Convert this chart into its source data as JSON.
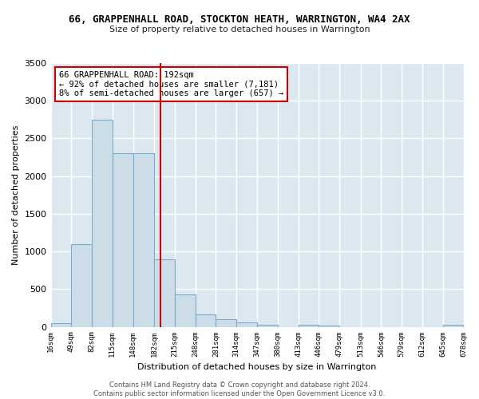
{
  "title": "66, GRAPPENHALL ROAD, STOCKTON HEATH, WARRINGTON, WA4 2AX",
  "subtitle": "Size of property relative to detached houses in Warrington",
  "xlabel": "Distribution of detached houses by size in Warrington",
  "ylabel": "Number of detached properties",
  "bin_edges": [
    16,
    49,
    82,
    115,
    148,
    182,
    215,
    248,
    281,
    314,
    347,
    380,
    413,
    446,
    479,
    513,
    546,
    579,
    612,
    645,
    678
  ],
  "bar_heights": [
    50,
    1100,
    2750,
    2300,
    2300,
    900,
    430,
    170,
    100,
    60,
    30,
    0,
    30,
    20,
    0,
    0,
    0,
    0,
    0,
    30
  ],
  "bar_color": "#ccdde8",
  "bar_edgecolor": "#7aabcc",
  "property_size": 192,
  "vline_color": "#cc0000",
  "ylim": [
    0,
    3500
  ],
  "yticks": [
    0,
    500,
    1000,
    1500,
    2000,
    2500,
    3000,
    3500
  ],
  "annotation_text": "66 GRAPPENHALL ROAD: 192sqm\n← 92% of detached houses are smaller (7,181)\n8% of semi-detached houses are larger (657) →",
  "annotation_box_color": "#ffffff",
  "annotation_box_edgecolor": "#cc0000",
  "bg_color": "#dce8f0",
  "grid_color": "#ffffff",
  "fig_bg_color": "#ffffff",
  "footer": "Contains HM Land Registry data © Crown copyright and database right 2024.\nContains public sector information licensed under the Open Government Licence v3.0.",
  "tick_labels": [
    "16sqm",
    "49sqm",
    "82sqm",
    "115sqm",
    "148sqm",
    "182sqm",
    "215sqm",
    "248sqm",
    "281sqm",
    "314sqm",
    "347sqm",
    "380sqm",
    "413sqm",
    "446sqm",
    "479sqm",
    "513sqm",
    "546sqm",
    "579sqm",
    "612sqm",
    "645sqm",
    "678sqm"
  ]
}
